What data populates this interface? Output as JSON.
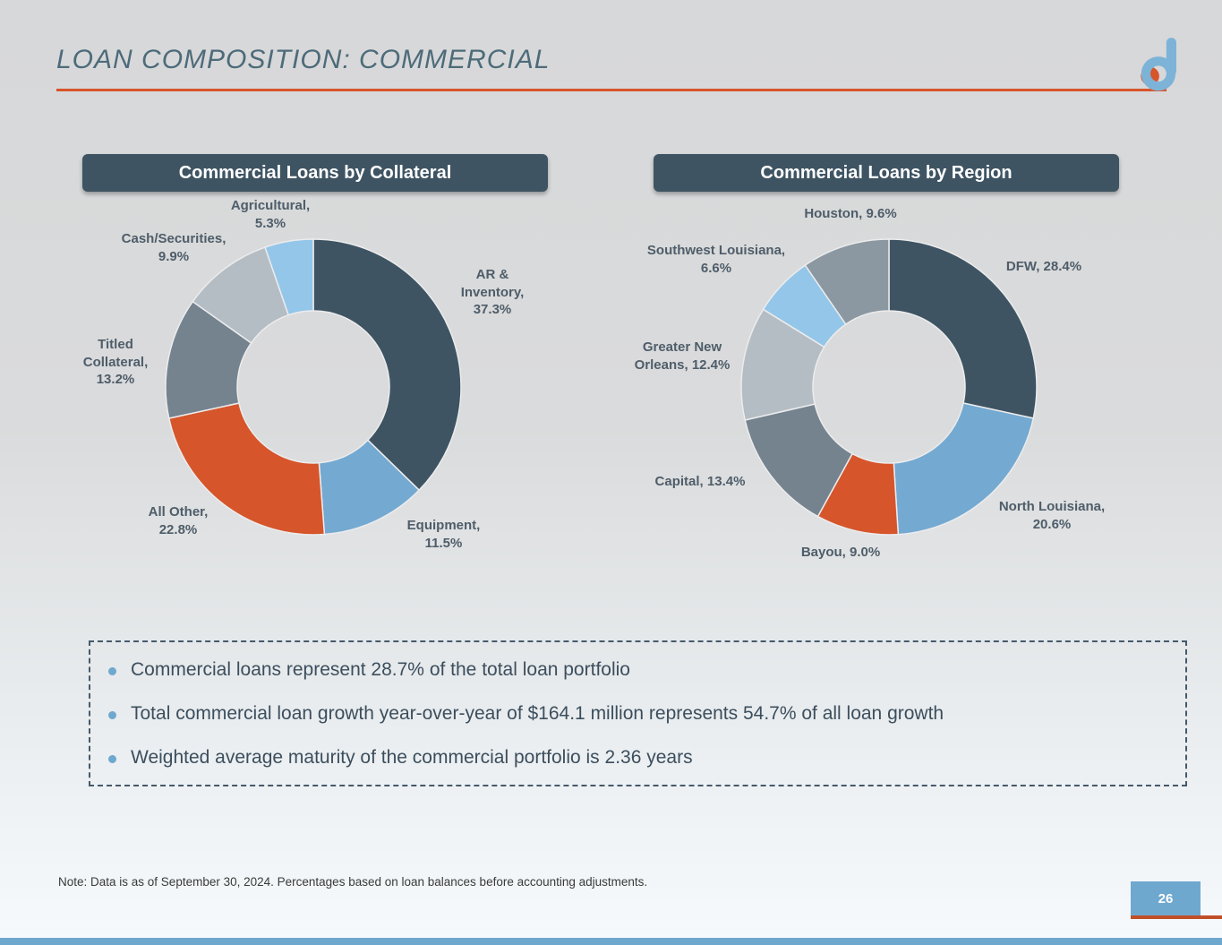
{
  "slide": {
    "title": "LOAN COMPOSITION: COMMERCIAL",
    "note": "Note: Data is as of September 30, 2024. Percentages based on loan balances before accounting adjustments.",
    "page_number": "26",
    "bullets": [
      "Commercial loans represent 28.7% of the total loan portfolio",
      "Total commercial loan growth year-over-year of $164.1 million represents 54.7% of all loan growth",
      "Weighted average maturity of the commercial portfolio is 2.36 years"
    ]
  },
  "colors": {
    "accent_orange": "#d6552b",
    "dark_slate": "#3e5463",
    "medium_blue": "#74a9d1",
    "slate_gray": "#75838f",
    "light_gray": "#b5bdc4",
    "light_blue": "#93c6e9",
    "medium_gray": "#8b98a1",
    "footer_blue": "#6fa8cf"
  },
  "chart_data": [
    {
      "type": "pie",
      "subtype": "donut",
      "title": "Commercial Loans by Collateral",
      "legend_position": "none",
      "slices": [
        {
          "name": "AR & Inventory",
          "value": 37.3,
          "color": "#3e5463",
          "label": "AR &\nInventory,\n37.3%"
        },
        {
          "name": "Equipment",
          "value": 11.5,
          "color": "#74a9d1",
          "label": "Equipment,\n11.5%"
        },
        {
          "name": "All Other",
          "value": 22.8,
          "color": "#d6552b",
          "label": "All Other,\n22.8%"
        },
        {
          "name": "Titled Collateral",
          "value": 13.2,
          "color": "#75838f",
          "label": "Titled\nCollateral,\n13.2%"
        },
        {
          "name": "Cash/Securities",
          "value": 9.9,
          "color": "#b5bdc4",
          "label": "Cash/Securities,\n9.9%"
        },
        {
          "name": "Agricultural",
          "value": 5.3,
          "color": "#93c6e9",
          "label": "Agricultural,\n5.3%"
        }
      ]
    },
    {
      "type": "pie",
      "subtype": "donut",
      "title": "Commercial Loans by Region",
      "legend_position": "none",
      "slices": [
        {
          "name": "DFW",
          "value": 28.4,
          "color": "#3e5463",
          "label": "DFW, 28.4%"
        },
        {
          "name": "North Louisiana",
          "value": 20.6,
          "color": "#74a9d1",
          "label": "North Louisiana,\n20.6%"
        },
        {
          "name": "Bayou",
          "value": 9.0,
          "color": "#d6552b",
          "label": "Bayou, 9.0%"
        },
        {
          "name": "Capital",
          "value": 13.4,
          "color": "#75838f",
          "label": "Capital, 13.4%"
        },
        {
          "name": "Greater New Orleans",
          "value": 12.4,
          "color": "#b5bdc4",
          "label": "Greater New\nOrleans, 12.4%"
        },
        {
          "name": "Southwest Louisiana",
          "value": 6.6,
          "color": "#93c6e9",
          "label": "Southwest Louisiana,\n6.6%"
        },
        {
          "name": "Houston",
          "value": 9.6,
          "color": "#8b98a1",
          "label": "Houston, 9.6%"
        }
      ]
    }
  ]
}
